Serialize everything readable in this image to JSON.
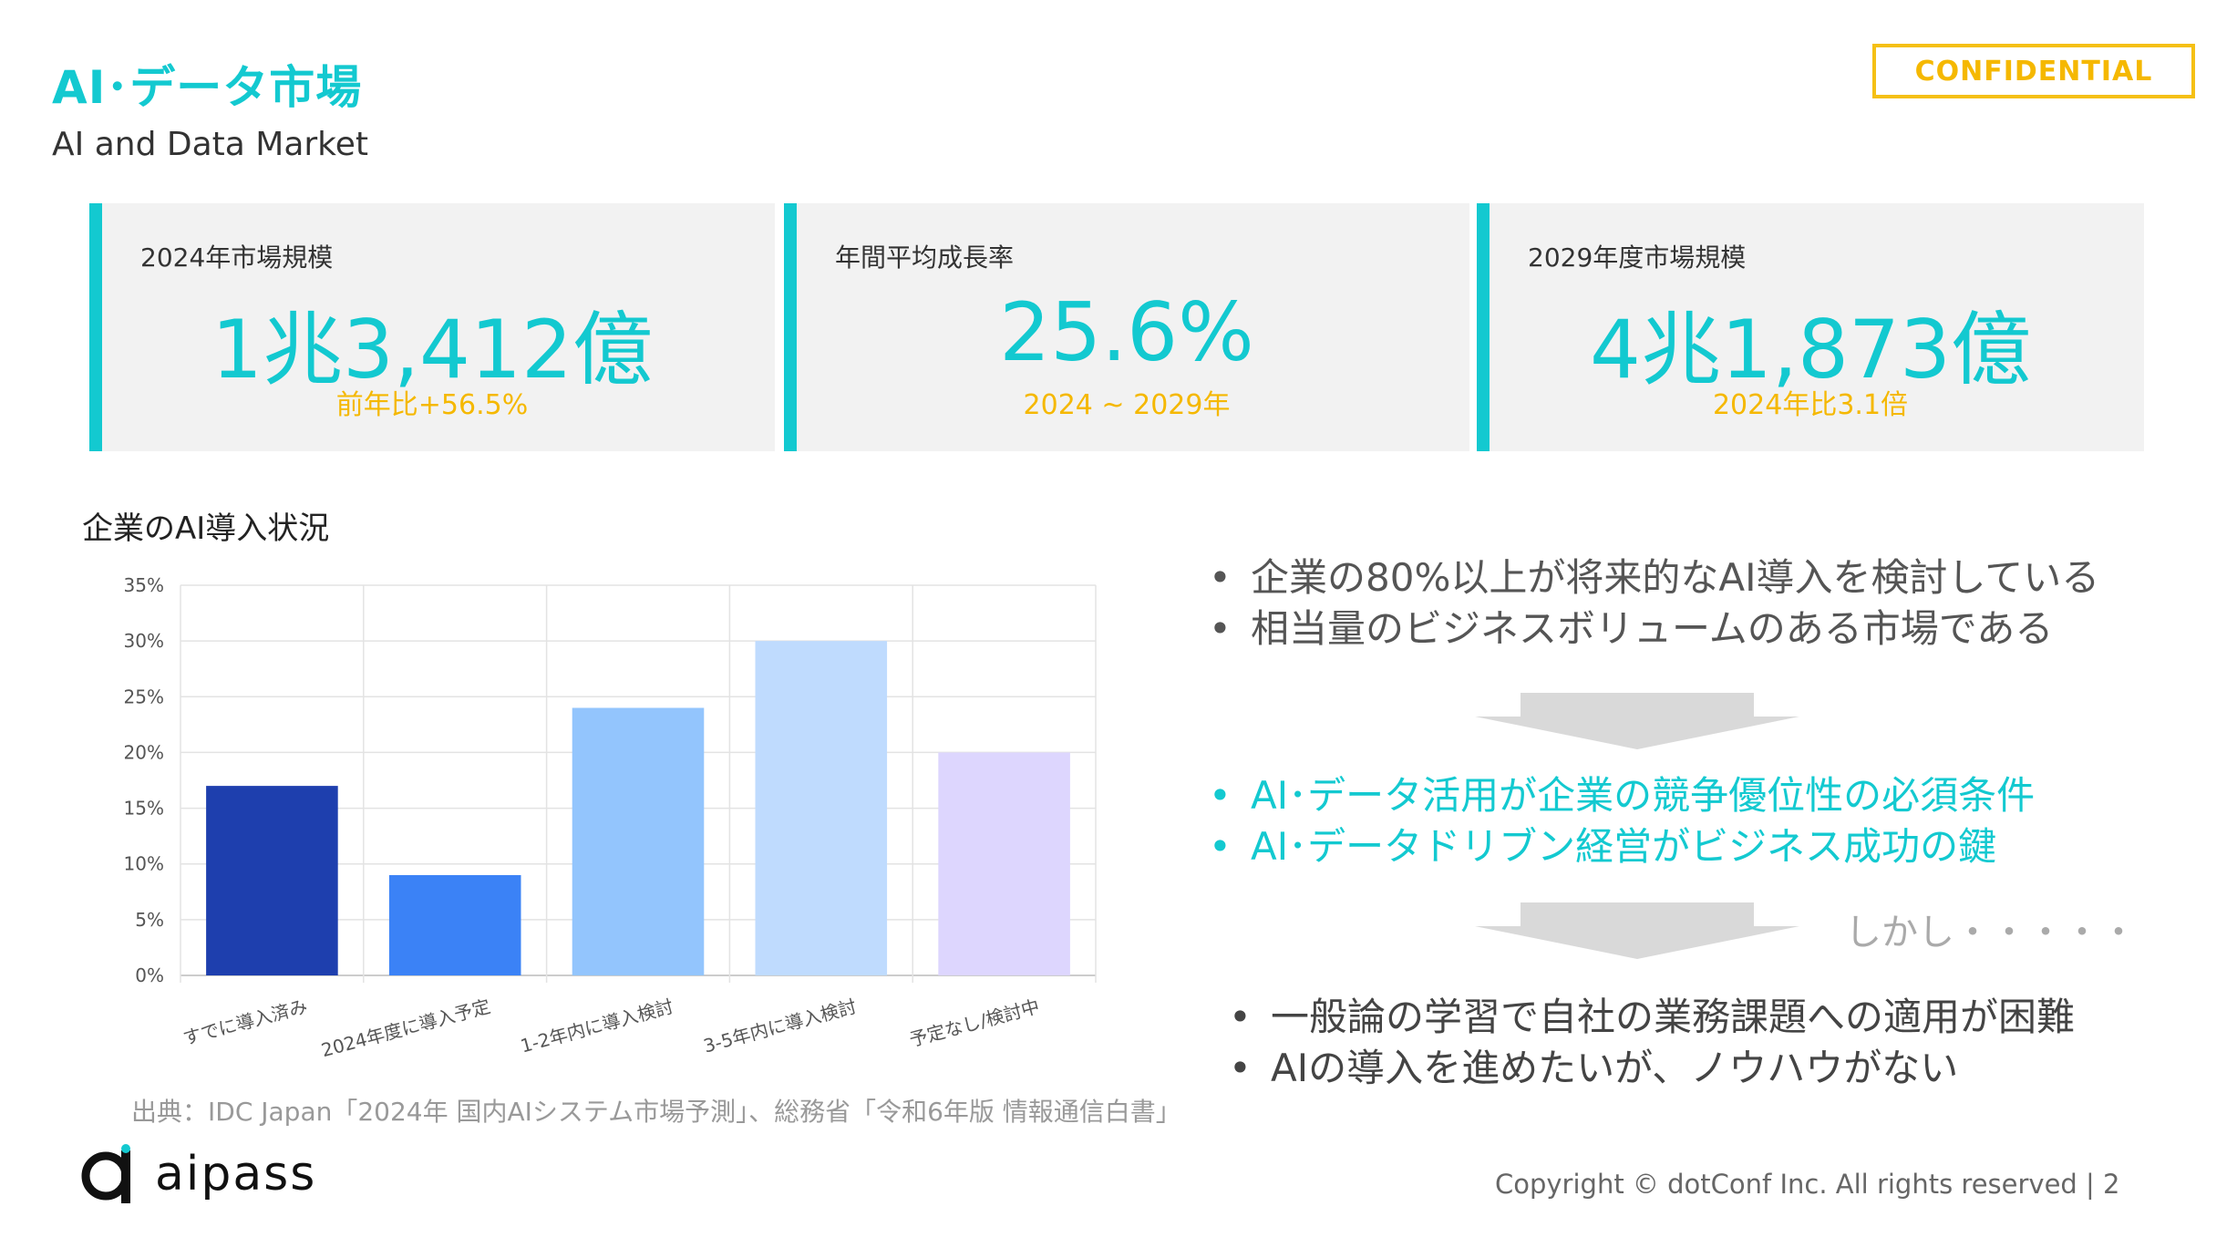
{
  "header": {
    "title": "AI･データ市場",
    "subtitle": "AI and Data Market",
    "badge": "CONFIDENTIAL"
  },
  "cards": [
    {
      "label": "2024年市場規模",
      "value": "1兆3,412億",
      "note": "前年比+56.5%"
    },
    {
      "label": "年間平均成長率",
      "value": "25.6%",
      "note": "2024 ~ 2029年"
    },
    {
      "label": "2029年度市場規模",
      "value": "4兆1,873億",
      "note": "2024年比3.1倍"
    }
  ],
  "chart_title": "企業のAI導入状況",
  "chart_data": {
    "type": "bar",
    "categories": [
      "すでに導入済み",
      "2024年度に導入予定",
      "1-2年内に導入検討",
      "3-5年内に導入検討",
      "予定なし/検討中"
    ],
    "values": [
      17,
      9,
      24,
      30,
      20
    ],
    "colors": [
      "#1e3fae",
      "#3b82f6",
      "#93c5fd",
      "#bfdbfe",
      "#ddd6fe"
    ],
    "ylim": [
      0,
      35
    ],
    "yticks": [
      "0%",
      "5%",
      "10%",
      "15%",
      "20%",
      "25%",
      "30%",
      "35%"
    ],
    "grid": true
  },
  "bullets_top": [
    "企業の80%以上が将来的なAI導入を検討している",
    "相当量のビジネスボリュームのある市場である"
  ],
  "bullets_mid": [
    "AI･データ活用が企業の競争優位性の必須条件",
    "AI･データドリブン経営がビジネス成功の鍵"
  ],
  "however": "しかし・・・・・",
  "bullets_bottom": [
    "一般論の学習で自社の業務課題への適用が困難",
    "AIの導入を進めたいが、ノウハウがない"
  ],
  "bullet_symbol": "•",
  "source": "出典：IDC Japan「2024年 国内AIシステム市場予測」、総務省「令和6年版 情報通信白書」",
  "footer": {
    "logo": "aipass",
    "copyright": "Copyright © dotConf Inc. All rights reserved | 2"
  }
}
